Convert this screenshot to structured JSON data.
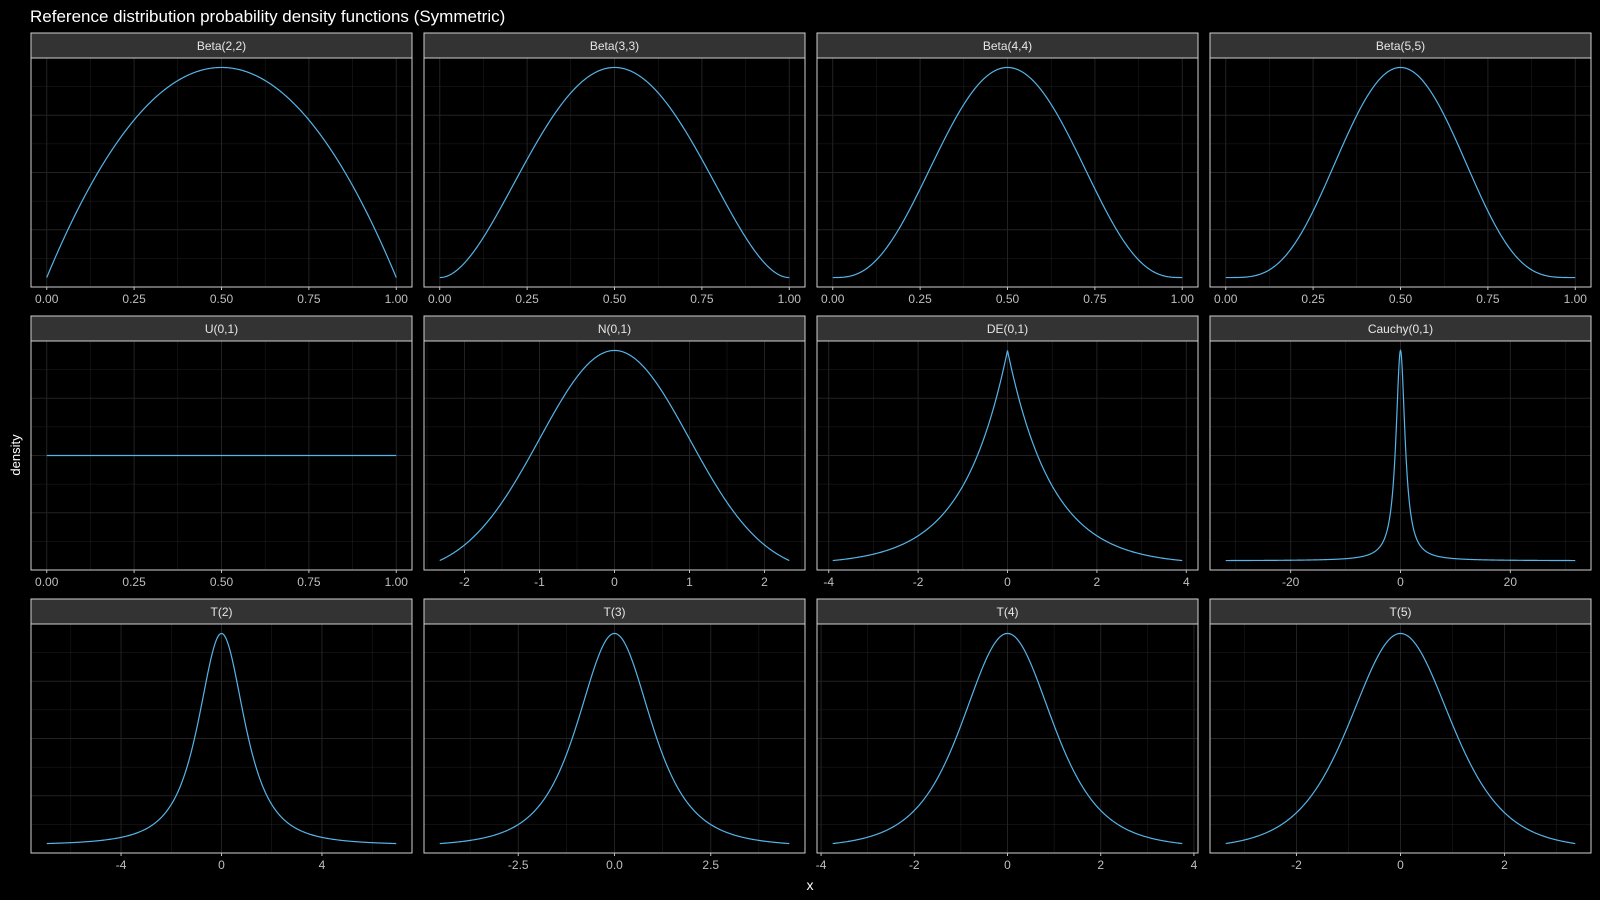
{
  "chart_data": {
    "type": "line",
    "title": "Reference distribution probability density functions (Symmetric)",
    "xlabel": "x",
    "ylabel": "density",
    "grid": true,
    "legend": "none",
    "colors": {
      "background": "#000000",
      "panel_border": "#cfcfcf",
      "strip_background": "#333333",
      "strip_text": "#e6e6e6",
      "grid": "#222222",
      "axis_text": "#bfbfbf",
      "title": "#ffffff",
      "curve": "#56B4E9"
    },
    "panels": [
      {
        "label": "Beta(2,2)",
        "dist": "beta",
        "a": 2,
        "b": 2,
        "xlim": [
          0,
          1
        ],
        "xticks": [
          0,
          0.25,
          0.5,
          0.75,
          1
        ],
        "tick_labels": [
          "0.00",
          "0.25",
          "0.50",
          "0.75",
          "1.00"
        ]
      },
      {
        "label": "Beta(3,3)",
        "dist": "beta",
        "a": 3,
        "b": 3,
        "xlim": [
          0,
          1
        ],
        "xticks": [
          0,
          0.25,
          0.5,
          0.75,
          1
        ],
        "tick_labels": [
          "0.00",
          "0.25",
          "0.50",
          "0.75",
          "1.00"
        ]
      },
      {
        "label": "Beta(4,4)",
        "dist": "beta",
        "a": 4,
        "b": 4,
        "xlim": [
          0,
          1
        ],
        "xticks": [
          0,
          0.25,
          0.5,
          0.75,
          1
        ],
        "tick_labels": [
          "0.00",
          "0.25",
          "0.50",
          "0.75",
          "1.00"
        ]
      },
      {
        "label": "Beta(5,5)",
        "dist": "beta",
        "a": 5,
        "b": 5,
        "xlim": [
          0,
          1
        ],
        "xticks": [
          0,
          0.25,
          0.5,
          0.75,
          1
        ],
        "tick_labels": [
          "0.00",
          "0.25",
          "0.50",
          "0.75",
          "1.00"
        ]
      },
      {
        "label": "U(0,1)",
        "dist": "uniform",
        "xlim": [
          0,
          1
        ],
        "xticks": [
          0,
          0.25,
          0.5,
          0.75,
          1
        ],
        "tick_labels": [
          "0.00",
          "0.25",
          "0.50",
          "0.75",
          "1.00"
        ]
      },
      {
        "label": "N(0,1)",
        "dist": "normal",
        "xlim": [
          -2.33,
          2.33
        ],
        "xticks": [
          -2,
          -1,
          0,
          1,
          2
        ],
        "tick_labels": [
          "-2",
          "-1",
          "0",
          "1",
          "2"
        ]
      },
      {
        "label": "DE(0,1)",
        "dist": "laplace",
        "xlim": [
          -3.91,
          3.91
        ],
        "xticks": [
          -4,
          -2,
          0,
          2,
          4
        ],
        "tick_labels": [
          "-4",
          "-2",
          "0",
          "2",
          "4"
        ]
      },
      {
        "label": "Cauchy(0,1)",
        "dist": "cauchy",
        "xlim": [
          -31.82,
          31.82
        ],
        "xticks": [
          -20,
          0,
          20
        ],
        "tick_labels": [
          "-20",
          "0",
          "20"
        ]
      },
      {
        "label": "T(2)",
        "dist": "t",
        "df": 2,
        "xlim": [
          -6.96,
          6.96
        ],
        "xticks": [
          -4,
          0,
          4
        ],
        "tick_labels": [
          "-4",
          "0",
          "4"
        ]
      },
      {
        "label": "T(3)",
        "dist": "t",
        "df": 3,
        "xlim": [
          -4.54,
          4.54
        ],
        "xticks": [
          -2.5,
          0,
          2.5
        ],
        "tick_labels": [
          "-2.5",
          "0.0",
          "2.5"
        ]
      },
      {
        "label": "T(4)",
        "dist": "t",
        "df": 4,
        "xlim": [
          -3.75,
          3.75
        ],
        "xticks": [
          -4,
          -2,
          0,
          2,
          4
        ],
        "tick_labels": [
          "-4",
          "-2",
          "0",
          "2",
          "4"
        ]
      },
      {
        "label": "T(5)",
        "dist": "t",
        "df": 5,
        "xlim": [
          -3.36,
          3.36
        ],
        "xticks": [
          -2,
          0,
          2
        ],
        "tick_labels": [
          "-2",
          "0",
          "2"
        ]
      }
    ]
  }
}
